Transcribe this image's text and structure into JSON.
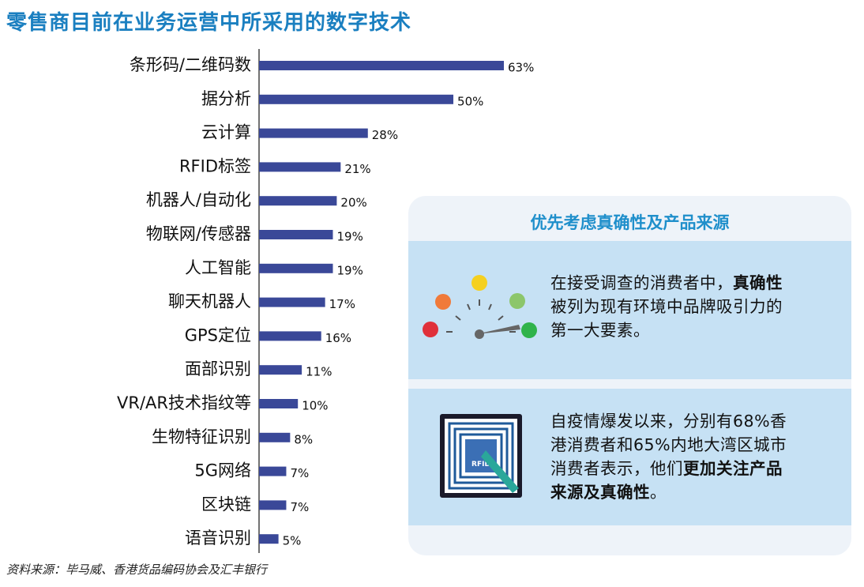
{
  "chart_data": {
    "type": "bar",
    "orientation": "horizontal",
    "title": "零售商目前在业务运营中所采用的数字技术",
    "categories": [
      "条形码/二维码数",
      "据分析",
      "云计算",
      "RFID标签",
      "机器人/自动化",
      "物联网/传感器",
      "人工智能",
      "聊天机器人",
      "GPS定位",
      "面部识别",
      "VR/AR技术指纹等",
      "生物特征识别",
      "5G网络",
      "区块链",
      "语音识别"
    ],
    "values": [
      63,
      50,
      28,
      21,
      20,
      19,
      19,
      17,
      16,
      11,
      10,
      8,
      7,
      7,
      5
    ],
    "value_labels": [
      "63%",
      "50%",
      "28%",
      "21%",
      "20%",
      "19%",
      "19%",
      "17%",
      "16%",
      "11%",
      "10%",
      "8%",
      "7%",
      "7%",
      "5%"
    ],
    "color": "#3a4898",
    "source": "资料来源：毕马威、香港货品编码协会及汇丰银行"
  },
  "panel": {
    "title": "优先考虑真确性及产品来源",
    "blocks": [
      {
        "lines": [
          [
            {
              "text": "在接受调查的消费者中，"
            },
            {
              "text": "真确性",
              "bold": true
            }
          ],
          [
            {
              "text": "被列为现有环境中品牌吸引力的"
            }
          ],
          [
            {
              "text": "第一大要素。"
            }
          ]
        ]
      },
      {
        "lines": [
          [
            {
              "text": "自疫情爆发以来，分别有68%香"
            }
          ],
          [
            {
              "text": "港消费者和65%内地大湾区城市"
            }
          ],
          [
            {
              "text": "消费者表示，他们"
            },
            {
              "text": "更加关注产品",
              "bold": true
            }
          ],
          [
            {
              "text": "来源及真确性",
              "bold": true
            },
            {
              "text": "。"
            }
          ]
        ]
      }
    ]
  }
}
